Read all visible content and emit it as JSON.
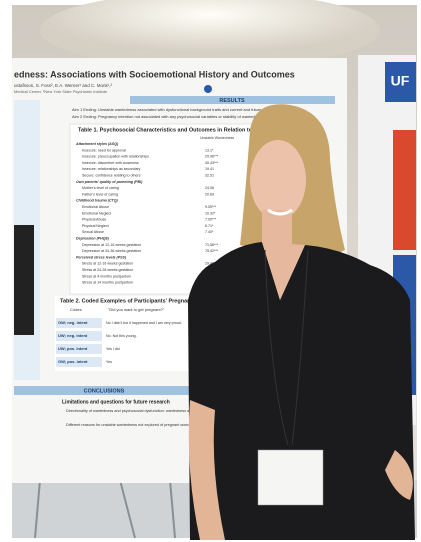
{
  "poster": {
    "title": "edness: Associations with Socioemotional History and Outcomes",
    "authors": "ustafsson, S. Foss², E.A. Werner¹ and C. Monk¹,²",
    "affiliation": "Medical Center, ²New York State Psychiatric Institute",
    "results_heading": "RESULTS",
    "aims": [
      "Aim 1 Ending: Unstable wantedness associated with dysfunctional background traits and current and future outcomes",
      "Aim 2 Ending: Pregnancy intention not associated with any psychosocial variables or stability of wantedness"
    ],
    "table1": {
      "title": "Table 1. Psychosocial Characteristics and Outcomes in Relation to Pregnan",
      "column": "Unstable Wantedness",
      "rows": [
        [
          "Attachment styles (ASQ)",
          ""
        ],
        [
          "Insecure: need for approval",
          "13.1*"
        ],
        [
          "Insecure: preoccupation with relationships",
          "29.96***"
        ],
        [
          "Insecure: discomfort with closeness",
          "40.43***"
        ],
        [
          "Insecure: relationships as secondary",
          "19.41"
        ],
        [
          "Secure: confidence relating to others",
          "32.51"
        ],
        [
          "Own parents' quality of parenting (PBI)",
          ""
        ],
        [
          "Mother's level of caring",
          "24.06"
        ],
        [
          "Father's level of caring",
          "20.69"
        ],
        [
          "Childhood trauma (CTQ)",
          ""
        ],
        [
          "Emotional Abuse",
          "9.05***"
        ],
        [
          "Emotional Neglect",
          "10.32*"
        ],
        [
          "Physical Abuse",
          "7.00***"
        ],
        [
          "Physical Neglect",
          "6.71*"
        ],
        [
          "Sexual Abuse",
          "7.40*"
        ],
        [
          "Depression (PHQ9)",
          ""
        ],
        [
          "Depression at 12-16 weeks gestation",
          "71.56***"
        ],
        [
          "Depression at 34-36 weeks gestation",
          "75.42***"
        ],
        [
          "Perceived stress levels (PSS)",
          ""
        ],
        [
          "Stress at 12-16 weeks gestation",
          "29.48***"
        ],
        [
          "Stress at 24-28 weeks gestation",
          "27.55**"
        ],
        [
          "Stress at 4 months postpartum",
          "26.53*"
        ],
        [
          "Stress at 14 months postpartum",
          "28.61*"
        ]
      ]
    },
    "table2": {
      "title": "Table 2. Coded Examples of Participants' Pregnancy Int",
      "header": [
        "Codes",
        "\"Did you want to get pregnant?\""
      ],
      "rows": [
        [
          "OW; neg. intent",
          "No I didn't but it happened and I am very proud."
        ],
        [
          "UW; neg. intent",
          "No. Not this young."
        ],
        [
          "UW; pos. intent",
          "Yes I did"
        ],
        [
          "OW; pos. intent",
          "Yes"
        ]
      ]
    },
    "conclusions_heading": "CONCLUSIONS",
    "limitations": {
      "heading": "Limitations and questions for future research",
      "bullets": [
        "Directionality of wantedness and psychosocial dysfunction: wantedness and the later dysfunction, or does unstable history?",
        "Different reasons for unstable wantedness not explored of pregnant women's varied experiences."
      ]
    }
  },
  "side_poster": {
    "label": "UF"
  }
}
